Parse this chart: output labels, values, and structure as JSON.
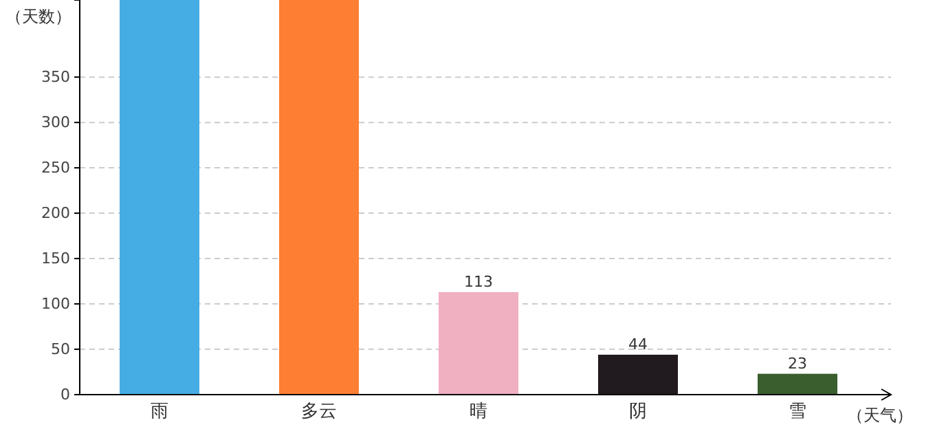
{
  "chart_data": {
    "type": "bar",
    "xlabel": "（天气）",
    "ylabel": "（天数）",
    "categories": [
      "雨",
      "多云",
      "晴",
      "阴",
      "雪"
    ],
    "values": [
      435,
      435,
      113,
      44,
      23
    ],
    "value_labels": [
      null,
      null,
      "113",
      "44",
      "23"
    ],
    "colors": [
      "#46ade4",
      "#fe7f34",
      "#f1afc2",
      "#211a1e",
      "#3b5e2f"
    ],
    "ylim": [
      0,
      435
    ],
    "yticks": [
      0,
      50,
      100,
      150,
      200,
      250,
      300,
      350
    ],
    "grid": "y"
  }
}
